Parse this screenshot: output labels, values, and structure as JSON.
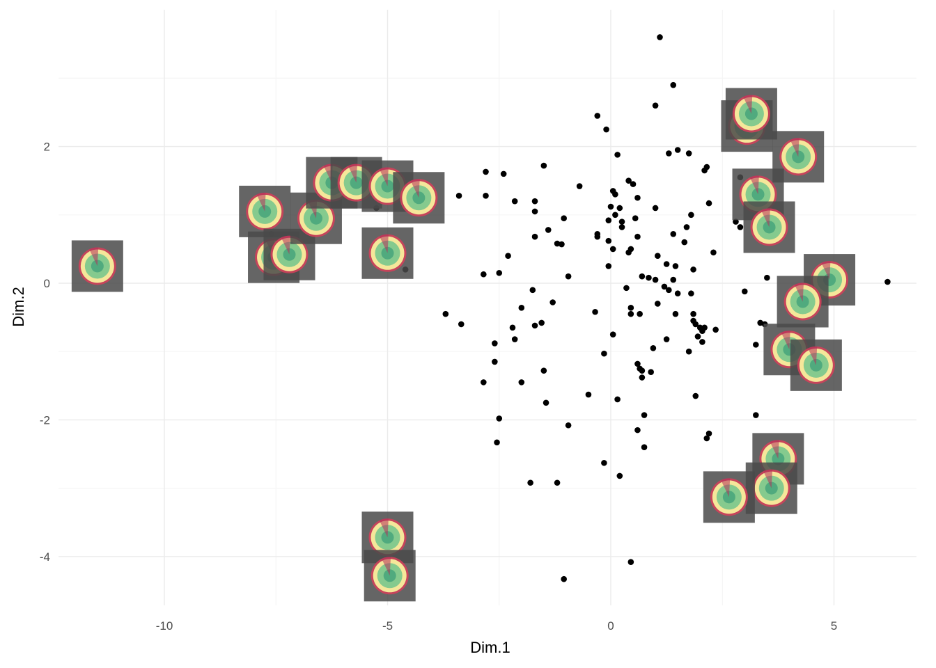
{
  "chart_data": {
    "type": "scatter",
    "title": "",
    "xlabel": "Dim.1",
    "ylabel": "Dim.2",
    "xlim": [
      -12.5,
      7.0
    ],
    "ylim": [
      -4.7,
      4.0
    ],
    "x_ticks": [
      -10,
      -5,
      0,
      5
    ],
    "y_ticks": [
      -4,
      -2,
      0,
      2
    ],
    "x_tick_labels": [
      "-10",
      "-5",
      "0",
      "5"
    ],
    "y_tick_labels": [
      "-4",
      "-2",
      "0",
      "2"
    ],
    "grid": true,
    "colors": {
      "point": "#000000",
      "grid_major": "#ebebeb",
      "grid_minor": "#f5f5f5",
      "thumb_bg": "#4a4a4a",
      "ring_outer": "#d0405a",
      "ring_mid": "#f5e79a",
      "ring_inner": "#5fc08a"
    },
    "points": [
      {
        "x": 1.1,
        "y": 3.6
      },
      {
        "x": 1.4,
        "y": 2.9
      },
      {
        "x": 1.0,
        "y": 2.6
      },
      {
        "x": -0.3,
        "y": 2.45
      },
      {
        "x": -0.1,
        "y": 2.25
      },
      {
        "x": 1.5,
        "y": 1.95
      },
      {
        "x": 1.3,
        "y": 1.9
      },
      {
        "x": 1.75,
        "y": 1.9
      },
      {
        "x": 0.15,
        "y": 1.88
      },
      {
        "x": 2.1,
        "y": 1.65
      },
      {
        "x": 2.15,
        "y": 1.7
      },
      {
        "x": -1.5,
        "y": 1.72
      },
      {
        "x": -2.8,
        "y": 1.63
      },
      {
        "x": -2.4,
        "y": 1.6
      },
      {
        "x": 0.4,
        "y": 1.5
      },
      {
        "x": 0.5,
        "y": 1.45
      },
      {
        "x": -0.7,
        "y": 1.42
      },
      {
        "x": 0.05,
        "y": 1.35
      },
      {
        "x": 0.1,
        "y": 1.3
      },
      {
        "x": -3.4,
        "y": 1.28
      },
      {
        "x": -2.8,
        "y": 1.28
      },
      {
        "x": 0.6,
        "y": 1.25
      },
      {
        "x": -2.15,
        "y": 1.2
      },
      {
        "x": -1.7,
        "y": 1.2
      },
      {
        "x": 2.2,
        "y": 1.17
      },
      {
        "x": 0.0,
        "y": 1.12
      },
      {
        "x": -1.7,
        "y": 1.05
      },
      {
        "x": 0.2,
        "y": 1.1
      },
      {
        "x": 1.0,
        "y": 1.1
      },
      {
        "x": 0.1,
        "y": 1.0
      },
      {
        "x": 1.8,
        "y": 1.0
      },
      {
        "x": -1.05,
        "y": 0.95
      },
      {
        "x": 0.55,
        "y": 0.95
      },
      {
        "x": -0.05,
        "y": 0.92
      },
      {
        "x": 0.25,
        "y": 0.9
      },
      {
        "x": 0.25,
        "y": 0.82
      },
      {
        "x": 1.7,
        "y": 0.82
      },
      {
        "x": -1.4,
        "y": 0.78
      },
      {
        "x": -0.3,
        "y": 0.72
      },
      {
        "x": -0.3,
        "y": 0.68
      },
      {
        "x": 1.4,
        "y": 0.72
      },
      {
        "x": -1.7,
        "y": 0.68
      },
      {
        "x": 0.6,
        "y": 0.68
      },
      {
        "x": -0.05,
        "y": 0.62
      },
      {
        "x": -1.2,
        "y": 0.58
      },
      {
        "x": -1.1,
        "y": 0.57
      },
      {
        "x": 1.65,
        "y": 0.6
      },
      {
        "x": 0.05,
        "y": 0.5
      },
      {
        "x": 0.45,
        "y": 0.5
      },
      {
        "x": 0.4,
        "y": 0.45
      },
      {
        "x": 2.3,
        "y": 0.45
      },
      {
        "x": -2.3,
        "y": 0.4
      },
      {
        "x": 1.05,
        "y": 0.4
      },
      {
        "x": 1.25,
        "y": 0.28
      },
      {
        "x": 1.45,
        "y": 0.25
      },
      {
        "x": -0.05,
        "y": 0.25
      },
      {
        "x": 1.85,
        "y": 0.2
      },
      {
        "x": -2.5,
        "y": 0.15
      },
      {
        "x": -2.85,
        "y": 0.13
      },
      {
        "x": 0.7,
        "y": 0.1
      },
      {
        "x": 0.85,
        "y": 0.08
      },
      {
        "x": 1.0,
        "y": 0.05
      },
      {
        "x": 1.4,
        "y": 0.05
      },
      {
        "x": -0.95,
        "y": 0.1
      },
      {
        "x": 3.5,
        "y": 0.08
      },
      {
        "x": 6.2,
        "y": 0.02
      },
      {
        "x": 0.35,
        "y": -0.07
      },
      {
        "x": 1.2,
        "y": -0.05
      },
      {
        "x": 1.3,
        "y": -0.1
      },
      {
        "x": 1.5,
        "y": -0.15
      },
      {
        "x": 1.8,
        "y": -0.15
      },
      {
        "x": 3.0,
        "y": -0.12
      },
      {
        "x": -1.75,
        "y": -0.1
      },
      {
        "x": -1.3,
        "y": -0.28
      },
      {
        "x": 1.05,
        "y": -0.3
      },
      {
        "x": -2.0,
        "y": -0.36
      },
      {
        "x": 0.45,
        "y": -0.36
      },
      {
        "x": -0.35,
        "y": -0.42
      },
      {
        "x": 0.65,
        "y": -0.45
      },
      {
        "x": 0.45,
        "y": -0.45
      },
      {
        "x": 1.45,
        "y": -0.45
      },
      {
        "x": 1.85,
        "y": -0.45
      },
      {
        "x": -3.7,
        "y": -0.45
      },
      {
        "x": 1.85,
        "y": -0.55
      },
      {
        "x": 3.35,
        "y": -0.58
      },
      {
        "x": 3.45,
        "y": -0.6
      },
      {
        "x": -3.35,
        "y": -0.6
      },
      {
        "x": -1.55,
        "y": -0.58
      },
      {
        "x": -1.7,
        "y": -0.62
      },
      {
        "x": 1.9,
        "y": -0.6
      },
      {
        "x": 2.0,
        "y": -0.65
      },
      {
        "x": 2.05,
        "y": -0.7
      },
      {
        "x": 2.1,
        "y": -0.65
      },
      {
        "x": 2.35,
        "y": -0.68
      },
      {
        "x": -2.2,
        "y": -0.65
      },
      {
        "x": 0.05,
        "y": -0.75
      },
      {
        "x": 1.95,
        "y": -0.78
      },
      {
        "x": -2.15,
        "y": -0.82
      },
      {
        "x": 1.25,
        "y": -0.82
      },
      {
        "x": 2.05,
        "y": -0.86
      },
      {
        "x": -2.6,
        "y": -0.88
      },
      {
        "x": 3.25,
        "y": -0.9
      },
      {
        "x": 0.95,
        "y": -0.95
      },
      {
        "x": 1.75,
        "y": -1.0
      },
      {
        "x": -0.15,
        "y": -1.03
      },
      {
        "x": -2.6,
        "y": -1.15
      },
      {
        "x": 0.6,
        "y": -1.18
      },
      {
        "x": 0.65,
        "y": -1.25
      },
      {
        "x": 0.7,
        "y": -1.28
      },
      {
        "x": 0.9,
        "y": -1.3
      },
      {
        "x": 0.7,
        "y": -1.38
      },
      {
        "x": -1.5,
        "y": -1.28
      },
      {
        "x": -2.85,
        "y": -1.45
      },
      {
        "x": -2.0,
        "y": -1.45
      },
      {
        "x": -0.5,
        "y": -1.63
      },
      {
        "x": 1.9,
        "y": -1.65
      },
      {
        "x": 0.15,
        "y": -1.7
      },
      {
        "x": -1.45,
        "y": -1.75
      },
      {
        "x": 0.75,
        "y": -1.93
      },
      {
        "x": 3.25,
        "y": -1.93
      },
      {
        "x": -2.5,
        "y": -1.98
      },
      {
        "x": -0.95,
        "y": -2.08
      },
      {
        "x": 0.6,
        "y": -2.15
      },
      {
        "x": 2.2,
        "y": -2.2
      },
      {
        "x": 2.15,
        "y": -2.27
      },
      {
        "x": -2.55,
        "y": -2.33
      },
      {
        "x": 0.75,
        "y": -2.4
      },
      {
        "x": -0.15,
        "y": -2.63
      },
      {
        "x": 0.2,
        "y": -2.82
      },
      {
        "x": -1.8,
        "y": -2.92
      },
      {
        "x": -1.2,
        "y": -2.92
      },
      {
        "x": 0.45,
        "y": -4.08
      },
      {
        "x": -1.05,
        "y": -4.33
      },
      {
        "x": -7.6,
        "y": 0.72
      },
      {
        "x": -5.25,
        "y": 1.1
      },
      {
        "x": -4.6,
        "y": 0.2
      },
      {
        "x": 3.25,
        "y": 2.2
      },
      {
        "x": 2.9,
        "y": 1.55
      },
      {
        "x": 2.8,
        "y": 0.9
      },
      {
        "x": 2.9,
        "y": 0.82
      },
      {
        "x": 3.4,
        "y": 0.7
      }
    ],
    "thumbnails": [
      {
        "x": -11.5,
        "y": 0.25
      },
      {
        "x": -7.75,
        "y": 1.05
      },
      {
        "x": -7.55,
        "y": 0.38
      },
      {
        "x": -7.2,
        "y": 0.42
      },
      {
        "x": -6.6,
        "y": 0.95
      },
      {
        "x": -6.25,
        "y": 1.47
      },
      {
        "x": -5.7,
        "y": 1.47
      },
      {
        "x": -5.0,
        "y": 1.42
      },
      {
        "x": -4.3,
        "y": 1.25
      },
      {
        "x": -5.0,
        "y": 0.44
      },
      {
        "x": -5.0,
        "y": -3.72
      },
      {
        "x": -4.95,
        "y": -4.28
      },
      {
        "x": 3.05,
        "y": 2.3
      },
      {
        "x": 3.15,
        "y": 2.48
      },
      {
        "x": 4.2,
        "y": 1.85
      },
      {
        "x": 3.3,
        "y": 1.3
      },
      {
        "x": 3.55,
        "y": 0.82
      },
      {
        "x": 4.9,
        "y": 0.05
      },
      {
        "x": 4.3,
        "y": -0.27
      },
      {
        "x": 4.0,
        "y": -0.97
      },
      {
        "x": 4.6,
        "y": -1.2
      },
      {
        "x": 3.75,
        "y": -2.57
      },
      {
        "x": 3.6,
        "y": -3.0
      },
      {
        "x": 2.65,
        "y": -3.13
      }
    ]
  }
}
